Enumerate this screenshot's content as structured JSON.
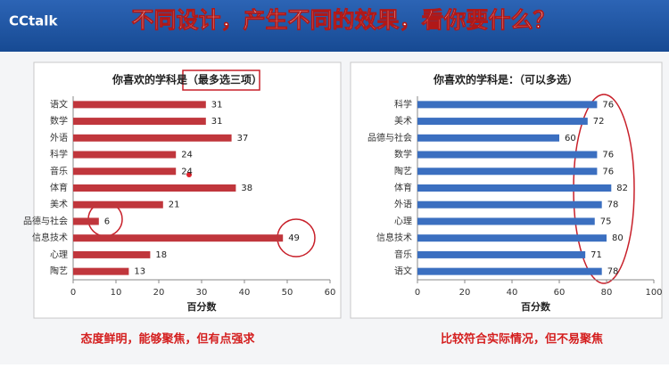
{
  "header": {
    "logo": "CCtalk",
    "title": "不同设计，产生不同的效果，看你要什么？"
  },
  "chart_data": [
    {
      "type": "hbar",
      "title": "你喜欢的学科是（最多选三项）",
      "x_label": "百分数",
      "categories": [
        "语文",
        "数学",
        "外语",
        "科学",
        "音乐",
        "体育",
        "美术",
        "品德与社会",
        "信息技术",
        "心理",
        "陶艺"
      ],
      "values": [
        31,
        31,
        37,
        24,
        24,
        38,
        21,
        6,
        49,
        18,
        13
      ],
      "color": "#c0363c",
      "xlim": [
        0,
        60
      ],
      "xticks": [
        0,
        10,
        20,
        30,
        40,
        50,
        60
      ],
      "grid": false
    },
    {
      "type": "hbar",
      "title": "你喜欢的学科是：（可以多选）",
      "x_label": "百分数",
      "categories": [
        "科学",
        "美术",
        "品德与社会",
        "数学",
        "陶艺",
        "体育",
        "外语",
        "心理",
        "信息技术",
        "音乐",
        "语文"
      ],
      "values": [
        76,
        72,
        60,
        76,
        76,
        82,
        78,
        75,
        80,
        71,
        78
      ],
      "color": "#3b6fc0",
      "xlim": [
        0,
        100
      ],
      "xticks": [
        0,
        20,
        40,
        60,
        80,
        100
      ],
      "grid": false
    }
  ],
  "captions": [
    "态度鲜明，能够聚焦，但有点强求",
    "比较符合实际情况，但不易聚焦"
  ]
}
